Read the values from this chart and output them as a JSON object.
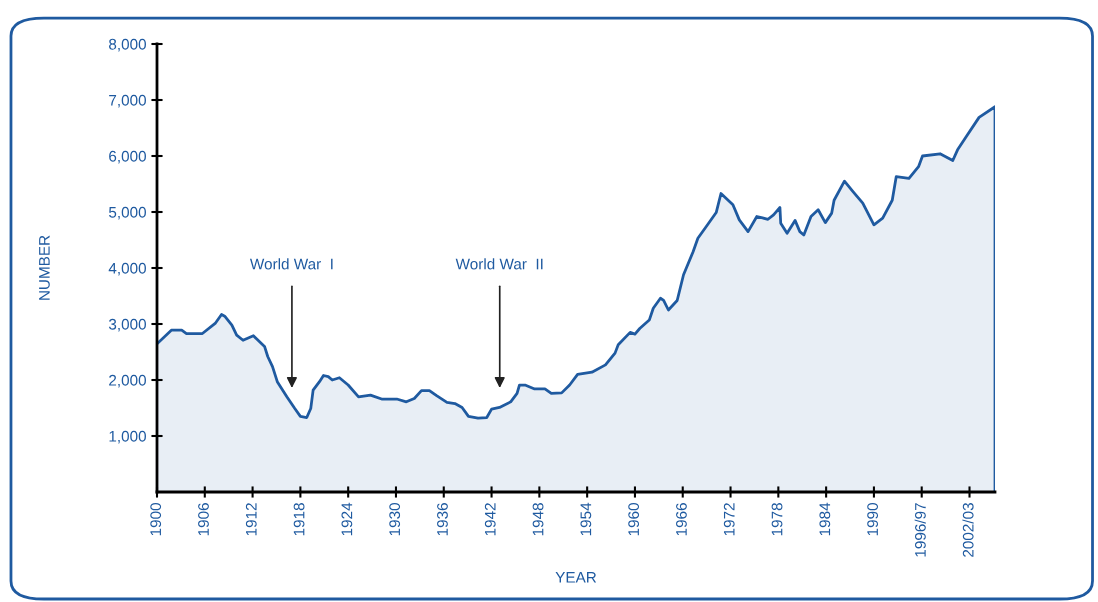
{
  "chart_data": {
    "type": "area",
    "xlabel": "YEAR",
    "ylabel": "NUMBER",
    "xlim": [
      1900,
      2005.2
    ],
    "ylim": [
      0,
      8000
    ],
    "xticks": [
      1900,
      1906,
      1912,
      1918,
      1924,
      1930,
      1936,
      1942,
      1948,
      1954,
      1960,
      1966,
      1972,
      1978,
      1984,
      1990,
      {
        "value": 1996,
        "label": "1996/97"
      },
      {
        "value": 2002,
        "label": "2002/03"
      }
    ],
    "yticks": [
      {
        "value": 1000,
        "label": "1,000"
      },
      {
        "value": 2000,
        "label": "2,000"
      },
      {
        "value": 3000,
        "label": "3,000"
      },
      {
        "value": 4000,
        "label": "4,000"
      },
      {
        "value": 5000,
        "label": "5,000"
      },
      {
        "value": 6000,
        "label": "6,000"
      },
      {
        "value": 7000,
        "label": "7,000"
      },
      {
        "value": 8000,
        "label": "8,000"
      }
    ],
    "grid": false,
    "legend": false,
    "annotations": [
      "World War  I",
      "World War  II"
    ],
    "series": [
      {
        "color": "#1f5aa0",
        "x": [
          1900.1,
          1901.8,
          1903.1,
          1903.7,
          1905.7,
          1907.3,
          1908.1,
          1908.5,
          1909.4,
          1910.0,
          1910.8,
          1912.1,
          1913.5,
          1913.9,
          1914.5,
          1915.1,
          1916.3,
          1917.3,
          1918.0,
          1918.8,
          1919.3,
          1919.6,
          1920.4,
          1920.9,
          1921.5,
          1922.0,
          1922.9,
          1924.0,
          1925.3,
          1926.8,
          1928.2,
          1930.1,
          1931.3,
          1932.3,
          1933.2,
          1934.2,
          1935.1,
          1936.4,
          1937.4,
          1938.3,
          1939.1,
          1940.3,
          1941.4,
          1942.0,
          1943.0,
          1944.4,
          1945.2,
          1945.5,
          1946.2,
          1947.4,
          1948.7,
          1949.5,
          1950.8,
          1951.8,
          1952.8,
          1954.6,
          1956.3,
          1957.5,
          1957.9,
          1959.4,
          1960.0,
          1960.6,
          1961.8,
          1962.3,
          1963.2,
          1963.6,
          1964.2,
          1965.3,
          1966.1,
          1967.3,
          1967.9,
          1969.0,
          1970.2,
          1970.8,
          1972.3,
          1973.1,
          1974.2,
          1975.3,
          1976.7,
          1977.4,
          1978.2,
          1978.3,
          1979.1,
          1980.1,
          1980.7,
          1981.2,
          1982.1,
          1983.0,
          1983.9,
          1984.7,
          1985.0,
          1986.3,
          1987.4,
          1988.6,
          1990.0,
          1991.1,
          1992.3,
          1992.8,
          1994.4,
          1995.6,
          1996.1,
          1998.3,
          1999.9,
          2000.5,
          2001.6,
          2003.2,
          2005.2
        ],
        "values": [
          2660,
          2890,
          2890,
          2830,
          2830,
          3010,
          3170,
          3140,
          2980,
          2800,
          2710,
          2790,
          2600,
          2420,
          2240,
          1970,
          1700,
          1490,
          1350,
          1330,
          1490,
          1820,
          1970,
          2080,
          2060,
          2000,
          2040,
          1910,
          1700,
          1730,
          1660,
          1660,
          1610,
          1670,
          1810,
          1810,
          1720,
          1600,
          1580,
          1510,
          1350,
          1320,
          1330,
          1480,
          1510,
          1610,
          1760,
          1910,
          1910,
          1840,
          1840,
          1760,
          1770,
          1910,
          2100,
          2140,
          2270,
          2480,
          2630,
          2850,
          2820,
          2920,
          3070,
          3280,
          3460,
          3420,
          3250,
          3420,
          3880,
          4290,
          4530,
          4750,
          4990,
          5330,
          5130,
          4860,
          4650,
          4920,
          4870,
          4950,
          5080,
          4800,
          4620,
          4850,
          4650,
          4590,
          4920,
          5040,
          4810,
          4980,
          5210,
          5550,
          5360,
          5160,
          4770,
          4890,
          5210,
          5630,
          5600,
          5810,
          6000,
          6040,
          5920,
          6110,
          6350,
          6690,
          6880
        ]
      }
    ]
  }
}
